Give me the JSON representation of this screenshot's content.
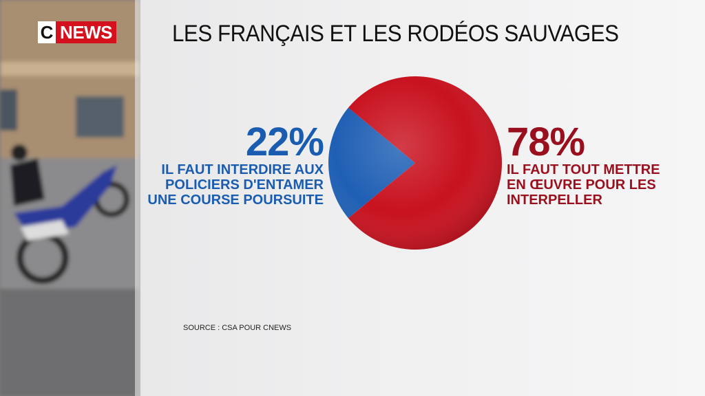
{
  "brand": {
    "c": "C",
    "news": "NEWS"
  },
  "chart_data": {
    "type": "pie",
    "title": "LES FRANÇAIS ET LES RODÉOS SAUVAGES",
    "categories": [
      "IL FAUT INTERDIRE AUX POLICIERS D'ENTAMER UNE COURSE POURSUITE",
      "IL FAUT TOUT METTRE EN ŒUVRE POUR LES INTERPELLER"
    ],
    "values": [
      22,
      78
    ],
    "value_labels": [
      "22%",
      "78%"
    ],
    "colors": [
      "#1f5fb4",
      "#c8121f"
    ],
    "label_colors": [
      "#1a5cb0",
      "#9a0f1d"
    ],
    "source": "SOURCE : CSA POUR CNEWS"
  }
}
